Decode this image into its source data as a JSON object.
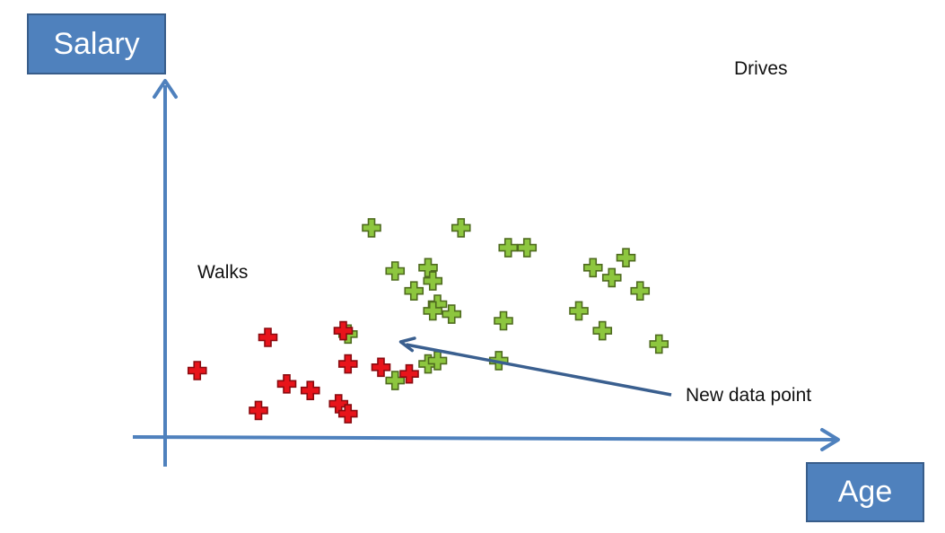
{
  "chart_data": {
    "type": "scatter",
    "xlabel": "Age",
    "ylabel": "Salary",
    "x_axis": {
      "range": [
        0,
        100
      ],
      "ticks": false,
      "grid": false
    },
    "y_axis": {
      "range": [
        0,
        100
      ],
      "ticks": false,
      "grid": false
    },
    "legend": "none",
    "series": [
      {
        "name": "Drives",
        "color": "#8dc63f",
        "marker": "plus",
        "points": [
          [
            44,
            63
          ],
          [
            56,
            51
          ],
          [
            49,
            50
          ],
          [
            53,
            44
          ],
          [
            39,
            31
          ],
          [
            49,
            17
          ],
          [
            61,
            37
          ],
          [
            58,
            40
          ],
          [
            57,
            47
          ],
          [
            56,
            22
          ],
          [
            71,
            23
          ],
          [
            72,
            35
          ],
          [
            73,
            57
          ],
          [
            77,
            57
          ],
          [
            88,
            38
          ],
          [
            91,
            51
          ],
          [
            95,
            48
          ],
          [
            98,
            54
          ],
          [
            101,
            44
          ],
          [
            93,
            32
          ],
          [
            105,
            28
          ],
          [
            58,
            23
          ],
          [
            57,
            38
          ],
          [
            63,
            63
          ]
        ]
      },
      {
        "name": "Walks",
        "color": "#e8141b",
        "marker": "plus",
        "points": [
          [
            7,
            20
          ],
          [
            22,
            30
          ],
          [
            26,
            16
          ],
          [
            20,
            8
          ],
          [
            38,
            32
          ],
          [
            39,
            22
          ],
          [
            46,
            21
          ],
          [
            37,
            10
          ],
          [
            52,
            19
          ],
          [
            31,
            14
          ],
          [
            39,
            7
          ]
        ]
      }
    ],
    "annotations": [
      {
        "text": "Drives",
        "near_series": "Drives"
      },
      {
        "text": "Walks",
        "near_series": "Walks"
      },
      {
        "text": "New data point",
        "arrow_to": [
          46,
          30
        ]
      }
    ]
  }
}
